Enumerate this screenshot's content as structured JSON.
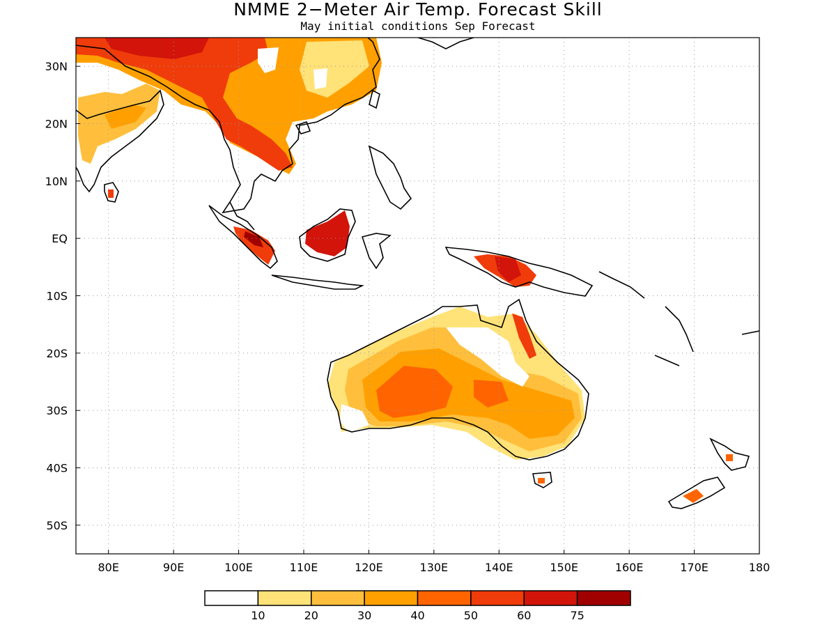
{
  "header": {
    "title": "NMME 2−Meter Air Temp. Forecast Skill",
    "subtitle": "May initial conditions  Sep Forecast"
  },
  "map": {
    "lon_range": [
      75,
      180
    ],
    "lat_range": [
      -55,
      35
    ],
    "lat_ticks": [
      {
        "value": 30,
        "label": "30N"
      },
      {
        "value": 20,
        "label": "20N"
      },
      {
        "value": 10,
        "label": "10N"
      },
      {
        "value": 0,
        "label": "EQ"
      },
      {
        "value": -10,
        "label": "10S"
      },
      {
        "value": -20,
        "label": "20S"
      },
      {
        "value": -30,
        "label": "30S"
      },
      {
        "value": -40,
        "label": "40S"
      },
      {
        "value": -50,
        "label": "50S"
      }
    ],
    "lon_ticks": [
      {
        "value": 80,
        "label": "80E"
      },
      {
        "value": 90,
        "label": "90E"
      },
      {
        "value": 100,
        "label": "100E"
      },
      {
        "value": 110,
        "label": "110E"
      },
      {
        "value": 120,
        "label": "120E"
      },
      {
        "value": 130,
        "label": "130E"
      },
      {
        "value": 140,
        "label": "140E"
      },
      {
        "value": 150,
        "label": "150E"
      },
      {
        "value": 160,
        "label": "160E"
      },
      {
        "value": 170,
        "label": "170E"
      },
      {
        "value": 180,
        "label": "180"
      }
    ],
    "grid": true
  },
  "legend": {
    "colors": [
      "#ffffff",
      "#ffe278",
      "#ffbf3c",
      "#ffa000",
      "#ff6400",
      "#f03c0a",
      "#d2140a",
      "#a00000"
    ],
    "labels": [
      "10",
      "20",
      "30",
      "40",
      "50",
      "60",
      "75"
    ]
  }
}
